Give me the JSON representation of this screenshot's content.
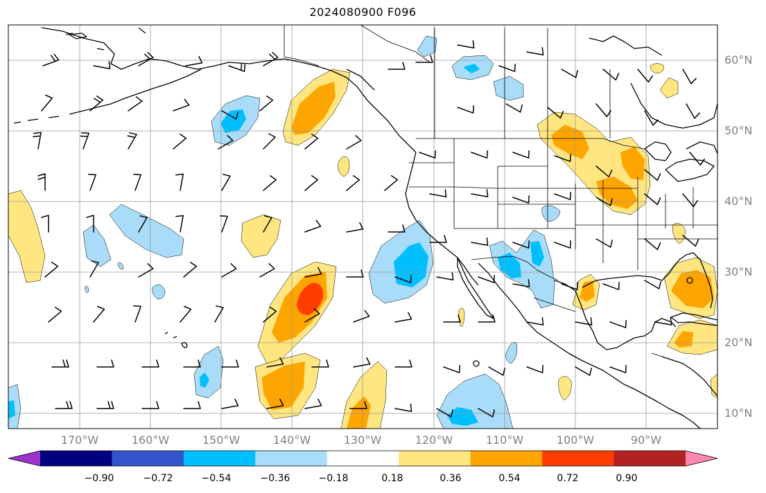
{
  "title": "2024080900 F096",
  "map": {
    "lon_range": [
      -180,
      -80
    ],
    "lat_range": [
      8,
      65
    ],
    "lon_labels": [
      "170°W",
      "160°W",
      "150°W",
      "140°W",
      "130°W",
      "120°W",
      "110°W",
      "100°W",
      "90°W"
    ],
    "lat_labels": [
      "60°N",
      "50°N",
      "40°N",
      "30°N",
      "20°N",
      "10°N"
    ],
    "grid": true
  },
  "colorbar": {
    "colors": [
      "#9933cc",
      "#000080",
      "#3355cc",
      "#00bfff",
      "#a8dcf8",
      "#ffffff",
      "#ffe680",
      "#ffa500",
      "#ff3d00",
      "#b22222",
      "#ff88b0"
    ],
    "tick_labels": [
      "−0.90",
      "−0.72",
      "−0.54",
      "−0.36",
      "−0.18",
      "0.18",
      "0.36",
      "0.54",
      "0.72",
      "0.90"
    ]
  },
  "legend_colors": {
    "coast": "#000000",
    "grid": "#999999"
  }
}
